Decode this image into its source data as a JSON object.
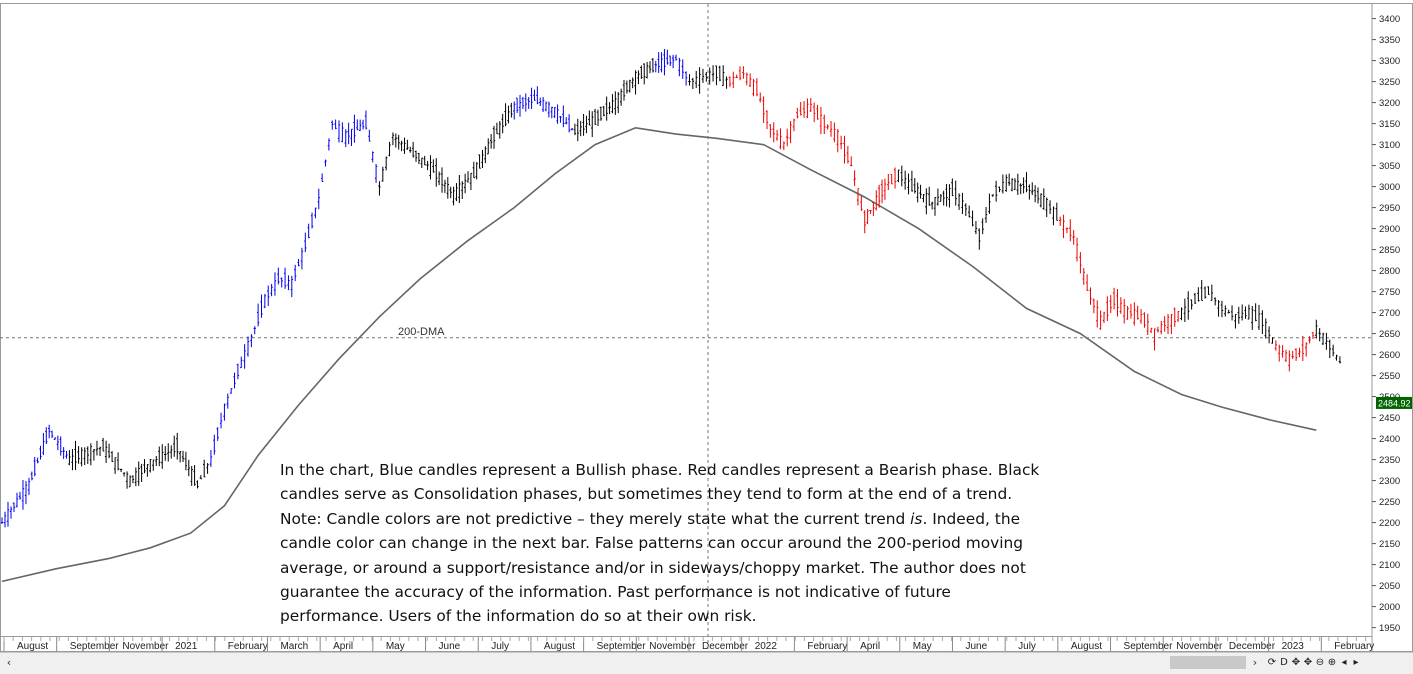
{
  "chart_data": {
    "type": "candlestick",
    "title": "",
    "xlabel": "",
    "ylabel": "",
    "ylim": [
      1930,
      3430
    ],
    "y_ticks": [
      1950,
      2000,
      2050,
      2100,
      2150,
      2200,
      2250,
      2300,
      2350,
      2400,
      2450,
      2500,
      2550,
      2600,
      2650,
      2700,
      2750,
      2800,
      2850,
      2900,
      2950,
      3000,
      3050,
      3100,
      3150,
      3200,
      3250,
      3300,
      3350,
      3400
    ],
    "x_tick_labels": [
      "August",
      "September",
      "November",
      "2021",
      "February",
      "March",
      "April",
      "May",
      "June",
      "July",
      "August",
      "September",
      "November",
      "December",
      "2022",
      "February",
      "April",
      "May",
      "June",
      "July",
      "August",
      "September",
      "November",
      "December",
      "2023",
      "February"
    ],
    "colors": {
      "bullish": "#0000ee",
      "bearish": "#ee0000",
      "consolidation": "#000000",
      "ma_line": "#666666",
      "price_badge": "#006400"
    },
    "last_price": "2484.92",
    "ma_label": "200-DMA",
    "crosshair_y": 2640,
    "moving_average_200": [
      [
        0,
        2060
      ],
      [
        0.04,
        2090
      ],
      [
        0.08,
        2115
      ],
      [
        0.11,
        2140
      ],
      [
        0.14,
        2175
      ],
      [
        0.165,
        2240
      ],
      [
        0.19,
        2360
      ],
      [
        0.22,
        2480
      ],
      [
        0.25,
        2590
      ],
      [
        0.28,
        2690
      ],
      [
        0.31,
        2780
      ],
      [
        0.345,
        2870
      ],
      [
        0.38,
        2950
      ],
      [
        0.41,
        3030
      ],
      [
        0.44,
        3100
      ],
      [
        0.47,
        3140
      ],
      [
        0.5,
        3125
      ],
      [
        0.53,
        3115
      ],
      [
        0.565,
        3100
      ],
      [
        0.6,
        3040
      ],
      [
        0.64,
        2975
      ],
      [
        0.68,
        2900
      ],
      [
        0.72,
        2810
      ],
      [
        0.76,
        2710
      ],
      [
        0.8,
        2650
      ],
      [
        0.84,
        2560
      ],
      [
        0.875,
        2505
      ],
      [
        0.905,
        2475
      ],
      [
        0.94,
        2445
      ],
      [
        0.975,
        2420
      ]
    ],
    "price_path": [
      [
        0,
        2200,
        "blue"
      ],
      [
        0.02,
        2290,
        "blue"
      ],
      [
        0.035,
        2420,
        "blue"
      ],
      [
        0.05,
        2350,
        "black"
      ],
      [
        0.075,
        2380,
        "black"
      ],
      [
        0.095,
        2300,
        "black"
      ],
      [
        0.11,
        2340,
        "black"
      ],
      [
        0.13,
        2380,
        "black"
      ],
      [
        0.145,
        2290,
        "black"
      ],
      [
        0.155,
        2350,
        "blue"
      ],
      [
        0.165,
        2470,
        "blue"
      ],
      [
        0.175,
        2560,
        "blue"
      ],
      [
        0.185,
        2640,
        "blue"
      ],
      [
        0.195,
        2730,
        "blue"
      ],
      [
        0.205,
        2780,
        "blue"
      ],
      [
        0.215,
        2770,
        "blue"
      ],
      [
        0.225,
        2860,
        "blue"
      ],
      [
        0.235,
        2970,
        "blue"
      ],
      [
        0.245,
        3150,
        "blue"
      ],
      [
        0.255,
        3120,
        "blue"
      ],
      [
        0.27,
        3150,
        "blue"
      ],
      [
        0.28,
        3000,
        "black"
      ],
      [
        0.29,
        3120,
        "black"
      ],
      [
        0.305,
        3080,
        "black"
      ],
      [
        0.32,
        3040,
        "black"
      ],
      [
        0.335,
        2980,
        "black"
      ],
      [
        0.35,
        3030,
        "black"
      ],
      [
        0.365,
        3120,
        "black"
      ],
      [
        0.38,
        3190,
        "blue"
      ],
      [
        0.395,
        3210,
        "blue"
      ],
      [
        0.41,
        3180,
        "blue"
      ],
      [
        0.425,
        3130,
        "black"
      ],
      [
        0.44,
        3160,
        "black"
      ],
      [
        0.455,
        3200,
        "black"
      ],
      [
        0.47,
        3260,
        "black"
      ],
      [
        0.485,
        3290,
        "blue"
      ],
      [
        0.5,
        3305,
        "blue"
      ],
      [
        0.51,
        3250,
        "black"
      ],
      [
        0.52,
        3260,
        "black"
      ],
      [
        0.53,
        3270,
        "black"
      ],
      [
        0.54,
        3250,
        "red"
      ],
      [
        0.55,
        3270,
        "red"
      ],
      [
        0.56,
        3230,
        "red"
      ],
      [
        0.57,
        3140,
        "red"
      ],
      [
        0.58,
        3100,
        "red"
      ],
      [
        0.59,
        3170,
        "red"
      ],
      [
        0.6,
        3190,
        "red"
      ],
      [
        0.61,
        3150,
        "red"
      ],
      [
        0.62,
        3120,
        "red"
      ],
      [
        0.63,
        3050,
        "red"
      ],
      [
        0.64,
        2920,
        "red"
      ],
      [
        0.655,
        3000,
        "red"
      ],
      [
        0.665,
        3030,
        "black"
      ],
      [
        0.675,
        3000,
        "black"
      ],
      [
        0.69,
        2960,
        "black"
      ],
      [
        0.705,
        2990,
        "black"
      ],
      [
        0.715,
        2950,
        "black"
      ],
      [
        0.725,
        2880,
        "black"
      ],
      [
        0.735,
        2980,
        "black"
      ],
      [
        0.745,
        3010,
        "black"
      ],
      [
        0.76,
        3000,
        "black"
      ],
      [
        0.775,
        2960,
        "black"
      ],
      [
        0.785,
        2920,
        "red"
      ],
      [
        0.795,
        2880,
        "red"
      ],
      [
        0.805,
        2760,
        "red"
      ],
      [
        0.815,
        2680,
        "red"
      ],
      [
        0.825,
        2730,
        "red"
      ],
      [
        0.835,
        2700,
        "red"
      ],
      [
        0.845,
        2690,
        "red"
      ],
      [
        0.855,
        2650,
        "red"
      ],
      [
        0.865,
        2680,
        "red"
      ],
      [
        0.875,
        2700,
        "black"
      ],
      [
        0.885,
        2730,
        "black"
      ],
      [
        0.895,
        2750,
        "black"
      ],
      [
        0.905,
        2710,
        "black"
      ],
      [
        0.915,
        2690,
        "black"
      ],
      [
        0.925,
        2700,
        "black"
      ],
      [
        0.935,
        2680,
        "black"
      ],
      [
        0.945,
        2620,
        "red"
      ],
      [
        0.955,
        2590,
        "red"
      ],
      [
        0.965,
        2610,
        "red"
      ],
      [
        0.975,
        2660,
        "black"
      ],
      [
        0.985,
        2620,
        "black"
      ],
      [
        0.995,
        2570,
        "black"
      ]
    ]
  },
  "annotation": {
    "part1": "In the chart, Blue candles represent a Bullish phase. Red candles represent a Bearish phase. Black candles serve as Consolidation phases, but sometimes they tend to form at the end of a trend. Note: Candle colors are not predictive – they merely state what the current trend ",
    "italic": "is",
    "part2": ". Indeed, the candle color can change in the next bar. False patterns can occur around the 200-period moving average, or around a support/resistance and/or in sideways/choppy market. The author does not guarantee the accuracy of the information. Past performance is not indicative of future performance. Users of the information do so at their own risk."
  },
  "toolbar": {
    "scroll_left": "‹",
    "scroll_right": "›",
    "icons": [
      {
        "name": "refresh-icon",
        "glyph": "⟳"
      },
      {
        "name": "d-icon",
        "glyph": "D"
      },
      {
        "name": "crosshair-icon",
        "glyph": "✥"
      },
      {
        "name": "move-icon",
        "glyph": "✥"
      },
      {
        "name": "zoom-out-icon",
        "glyph": "⊖"
      },
      {
        "name": "zoom-in-icon",
        "glyph": "⊕"
      },
      {
        "name": "prev-icon",
        "glyph": "◂"
      },
      {
        "name": "next-icon",
        "glyph": "▸"
      }
    ]
  }
}
